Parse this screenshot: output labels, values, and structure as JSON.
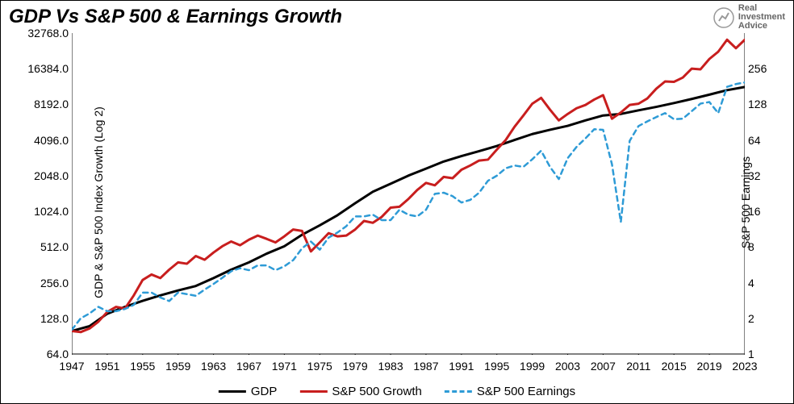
{
  "title": "GDP Vs S&P 500 & Earnings Growth",
  "logo": {
    "line1": "Real",
    "line2": "Investment",
    "line3": "Advice"
  },
  "chart": {
    "type": "line",
    "background_color": "#ffffff",
    "border_color": "#000000",
    "title_fontsize": 24,
    "tick_fontsize": 14,
    "label_fontsize": 14,
    "x": {
      "min": 1947,
      "max": 2023,
      "ticks": [
        1947,
        1951,
        1955,
        1959,
        1963,
        1967,
        1971,
        1975,
        1979,
        1983,
        1987,
        1991,
        1995,
        1999,
        2003,
        2007,
        2011,
        2015,
        2019,
        2023
      ]
    },
    "y_left": {
      "label": "GDP & S&P 500 Index Growth (Log 2)",
      "scale": "log2",
      "min": 64,
      "max": 32768,
      "ticks": [
        64,
        128,
        256,
        512,
        1024,
        2048,
        4096,
        8192,
        16384,
        32768
      ],
      "tick_labels": [
        "64.0",
        "128.0",
        "256.0",
        "512.0",
        "1024.0",
        "2048.0",
        "4096.0",
        "8192.0",
        "16384.0",
        "32768.0"
      ]
    },
    "y_right": {
      "label": "S&P 500 Earnings",
      "scale": "log2",
      "min": 1,
      "max": 256,
      "ticks": [
        1,
        2,
        4,
        8,
        16,
        32,
        64,
        128,
        256
      ]
    },
    "series": [
      {
        "name": "GDP",
        "legend": "GDP",
        "color": "#000000",
        "width": 3,
        "dash": "solid",
        "axis": "left",
        "points": [
          [
            1947,
            100
          ],
          [
            1949,
            110
          ],
          [
            1951,
            140
          ],
          [
            1953,
            160
          ],
          [
            1955,
            180
          ],
          [
            1957,
            200
          ],
          [
            1959,
            220
          ],
          [
            1961,
            240
          ],
          [
            1963,
            280
          ],
          [
            1965,
            330
          ],
          [
            1967,
            380
          ],
          [
            1969,
            450
          ],
          [
            1971,
            520
          ],
          [
            1973,
            650
          ],
          [
            1975,
            780
          ],
          [
            1977,
            950
          ],
          [
            1979,
            1200
          ],
          [
            1981,
            1500
          ],
          [
            1983,
            1750
          ],
          [
            1985,
            2050
          ],
          [
            1987,
            2350
          ],
          [
            1989,
            2700
          ],
          [
            1991,
            3000
          ],
          [
            1993,
            3300
          ],
          [
            1995,
            3650
          ],
          [
            1997,
            4100
          ],
          [
            1999,
            4600
          ],
          [
            2001,
            5000
          ],
          [
            2003,
            5400
          ],
          [
            2005,
            6000
          ],
          [
            2007,
            6600
          ],
          [
            2009,
            6800
          ],
          [
            2011,
            7300
          ],
          [
            2013,
            7800
          ],
          [
            2015,
            8400
          ],
          [
            2017,
            9100
          ],
          [
            2019,
            9900
          ],
          [
            2021,
            10800
          ],
          [
            2023,
            11500
          ]
        ]
      },
      {
        "name": "SP500",
        "legend": "S&P 500 Growth",
        "color": "#c81e1e",
        "width": 3,
        "dash": "solid",
        "axis": "left",
        "points": [
          [
            1947,
            100
          ],
          [
            1948,
            98
          ],
          [
            1949,
            105
          ],
          [
            1950,
            120
          ],
          [
            1951,
            145
          ],
          [
            1952,
            160
          ],
          [
            1953,
            155
          ],
          [
            1954,
            200
          ],
          [
            1955,
            270
          ],
          [
            1956,
            300
          ],
          [
            1957,
            280
          ],
          [
            1958,
            330
          ],
          [
            1959,
            380
          ],
          [
            1960,
            370
          ],
          [
            1961,
            430
          ],
          [
            1962,
            400
          ],
          [
            1963,
            460
          ],
          [
            1964,
            520
          ],
          [
            1965,
            570
          ],
          [
            1966,
            530
          ],
          [
            1967,
            590
          ],
          [
            1968,
            640
          ],
          [
            1969,
            600
          ],
          [
            1970,
            560
          ],
          [
            1971,
            630
          ],
          [
            1972,
            720
          ],
          [
            1973,
            700
          ],
          [
            1974,
            470
          ],
          [
            1975,
            560
          ],
          [
            1976,
            670
          ],
          [
            1977,
            630
          ],
          [
            1978,
            640
          ],
          [
            1979,
            720
          ],
          [
            1980,
            850
          ],
          [
            1981,
            820
          ],
          [
            1982,
            920
          ],
          [
            1983,
            1100
          ],
          [
            1984,
            1120
          ],
          [
            1985,
            1300
          ],
          [
            1986,
            1550
          ],
          [
            1987,
            1780
          ],
          [
            1988,
            1700
          ],
          [
            1989,
            2000
          ],
          [
            1990,
            1950
          ],
          [
            1991,
            2300
          ],
          [
            1992,
            2500
          ],
          [
            1993,
            2750
          ],
          [
            1994,
            2800
          ],
          [
            1995,
            3400
          ],
          [
            1996,
            4100
          ],
          [
            1997,
            5300
          ],
          [
            1998,
            6600
          ],
          [
            1999,
            8300
          ],
          [
            2000,
            9300
          ],
          [
            2001,
            7400
          ],
          [
            2002,
            6000
          ],
          [
            2003,
            6800
          ],
          [
            2004,
            7600
          ],
          [
            2005,
            8100
          ],
          [
            2006,
            9000
          ],
          [
            2007,
            9800
          ],
          [
            2008,
            6200
          ],
          [
            2009,
            7000
          ],
          [
            2010,
            8100
          ],
          [
            2011,
            8300
          ],
          [
            2012,
            9200
          ],
          [
            2013,
            11100
          ],
          [
            2014,
            12800
          ],
          [
            2015,
            12700
          ],
          [
            2016,
            13800
          ],
          [
            2017,
            16400
          ],
          [
            2018,
            16200
          ],
          [
            2019,
            19800
          ],
          [
            2020,
            22800
          ],
          [
            2021,
            28800
          ],
          [
            2022,
            24400
          ],
          [
            2023,
            28800
          ]
        ]
      },
      {
        "name": "Earnings",
        "legend": "S&P 500 Earnings",
        "color": "#2e9bd6",
        "width": 2.5,
        "dash": "6,5",
        "axis": "right",
        "points": [
          [
            1947,
            1.6
          ],
          [
            1948,
            2.0
          ],
          [
            1949,
            2.2
          ],
          [
            1950,
            2.5
          ],
          [
            1951,
            2.3
          ],
          [
            1952,
            2.3
          ],
          [
            1953,
            2.4
          ],
          [
            1954,
            2.6
          ],
          [
            1955,
            3.3
          ],
          [
            1956,
            3.3
          ],
          [
            1957,
            3.0
          ],
          [
            1958,
            2.8
          ],
          [
            1959,
            3.3
          ],
          [
            1960,
            3.2
          ],
          [
            1961,
            3.1
          ],
          [
            1962,
            3.5
          ],
          [
            1963,
            3.9
          ],
          [
            1964,
            4.4
          ],
          [
            1965,
            5.0
          ],
          [
            1966,
            5.3
          ],
          [
            1967,
            5.1
          ],
          [
            1968,
            5.6
          ],
          [
            1969,
            5.6
          ],
          [
            1970,
            5.1
          ],
          [
            1971,
            5.5
          ],
          [
            1972,
            6.2
          ],
          [
            1973,
            7.8
          ],
          [
            1974,
            8.9
          ],
          [
            1975,
            7.6
          ],
          [
            1976,
            9.6
          ],
          [
            1977,
            10.6
          ],
          [
            1978,
            12
          ],
          [
            1979,
            14.5
          ],
          [
            1980,
            14.5
          ],
          [
            1981,
            15
          ],
          [
            1982,
            13.5
          ],
          [
            1983,
            13.5
          ],
          [
            1984,
            16.5
          ],
          [
            1985,
            15
          ],
          [
            1986,
            14.5
          ],
          [
            1987,
            16.5
          ],
          [
            1988,
            22.5
          ],
          [
            1989,
            23
          ],
          [
            1990,
            21.5
          ],
          [
            1991,
            19
          ],
          [
            1992,
            20
          ],
          [
            1993,
            23
          ],
          [
            1994,
            29
          ],
          [
            1995,
            32
          ],
          [
            1996,
            37
          ],
          [
            1997,
            39
          ],
          [
            1998,
            38
          ],
          [
            1999,
            44
          ],
          [
            2000,
            52
          ],
          [
            2001,
            38
          ],
          [
            2002,
            30
          ],
          [
            2003,
            45
          ],
          [
            2004,
            56
          ],
          [
            2005,
            66
          ],
          [
            2006,
            79
          ],
          [
            2007,
            78
          ],
          [
            2008,
            40
          ],
          [
            2009,
            13
          ],
          [
            2010,
            63
          ],
          [
            2011,
            84
          ],
          [
            2012,
            92
          ],
          [
            2013,
            100
          ],
          [
            2014,
            108
          ],
          [
            2015,
            96
          ],
          [
            2016,
            97
          ],
          [
            2017,
            112
          ],
          [
            2018,
            130
          ],
          [
            2019,
            134
          ],
          [
            2020,
            108
          ],
          [
            2021,
            180
          ],
          [
            2022,
            190
          ],
          [
            2023,
            196
          ]
        ]
      }
    ],
    "legend_position": "bottom-center"
  }
}
